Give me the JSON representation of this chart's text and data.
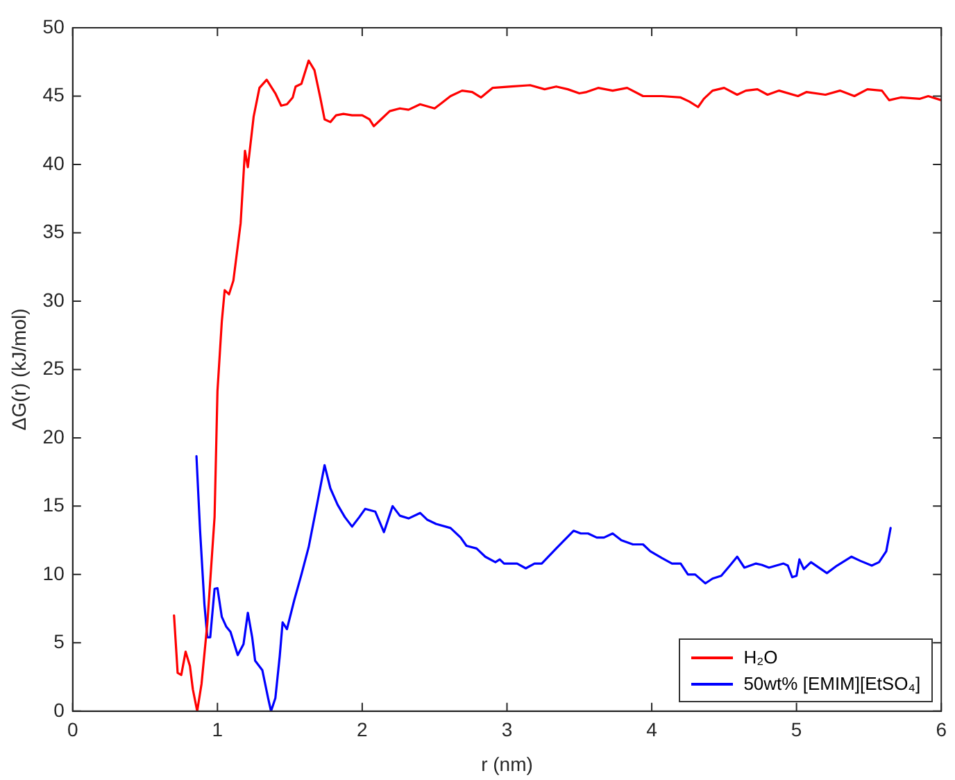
{
  "chart_data": {
    "type": "line",
    "xlabel": "r (nm)",
    "ylabel": "ΔG(r) (kJ/mol)",
    "xlim": [
      0,
      6
    ],
    "xticks": [
      0,
      1,
      2,
      3,
      4,
      5,
      6
    ],
    "ylim": [
      0,
      50
    ],
    "yticks": [
      0,
      5,
      10,
      15,
      20,
      25,
      30,
      35,
      40,
      45,
      50
    ],
    "grid": false,
    "legend": "bottom right",
    "marker": "none",
    "line_style": "solid",
    "series": [
      {
        "name": "H₂O",
        "color": "#ff0000",
        "x": [
          0.7,
          0.725,
          0.75,
          0.78,
          0.81,
          0.83,
          0.86,
          0.89,
          0.93,
          0.98,
          1.0,
          1.03,
          1.05,
          1.08,
          1.11,
          1.14,
          1.16,
          1.19,
          1.21,
          1.25,
          1.29,
          1.34,
          1.4,
          1.44,
          1.48,
          1.52,
          1.54,
          1.58,
          1.63,
          1.67,
          1.71,
          1.74,
          1.78,
          1.82,
          1.87,
          1.93,
          2.0,
          2.05,
          2.08,
          2.13,
          2.19,
          2.26,
          2.32,
          2.4,
          2.5,
          2.55,
          2.61,
          2.69,
          2.76,
          2.82,
          2.9,
          3.03,
          3.16,
          3.26,
          3.34,
          3.42,
          3.5,
          3.55,
          3.63,
          3.73,
          3.83,
          3.94,
          4.07,
          4.2,
          4.26,
          4.32,
          4.36,
          4.42,
          4.5,
          4.59,
          4.65,
          4.73,
          4.8,
          4.88,
          5.01,
          5.07,
          5.2,
          5.3,
          5.4,
          5.49,
          5.59,
          5.64,
          5.72,
          5.85,
          5.91,
          6.0
        ],
        "values": [
          7.0,
          2.8,
          2.65,
          4.35,
          3.3,
          1.6,
          0,
          2.0,
          6.4,
          14.2,
          23.4,
          28.5,
          30.8,
          30.5,
          31.5,
          34.0,
          35.7,
          41.0,
          39.8,
          43.5,
          45.6,
          46.2,
          45.2,
          44.3,
          44.4,
          44.9,
          45.7,
          45.9,
          47.6,
          46.9,
          44.9,
          43.3,
          43.1,
          43.6,
          43.7,
          43.6,
          43.6,
          43.3,
          42.8,
          43.3,
          43.9,
          44.1,
          44.0,
          44.4,
          44.1,
          44.5,
          45.0,
          45.4,
          45.3,
          44.9,
          45.6,
          45.7,
          45.8,
          45.5,
          45.7,
          45.5,
          45.2,
          45.3,
          45.6,
          45.4,
          45.6,
          45.0,
          45.0,
          44.9,
          44.6,
          44.2,
          44.8,
          45.4,
          45.6,
          45.1,
          45.4,
          45.5,
          45.1,
          45.4,
          45.0,
          45.3,
          45.1,
          45.4,
          45.0,
          45.5,
          45.4,
          44.7,
          44.9,
          44.8,
          45.0,
          44.7
        ]
      },
      {
        "name": "50wt% [EMIM][EtSO₄]",
        "color": "#0000ff",
        "x": [
          0.855,
          0.88,
          0.91,
          0.93,
          0.95,
          0.98,
          1.0,
          1.03,
          1.06,
          1.09,
          1.14,
          1.18,
          1.21,
          1.24,
          1.26,
          1.31,
          1.35,
          1.37,
          1.4,
          1.43,
          1.45,
          1.48,
          1.53,
          1.58,
          1.63,
          1.69,
          1.74,
          1.78,
          1.83,
          1.88,
          1.93,
          1.98,
          2.02,
          2.09,
          2.15,
          2.21,
          2.26,
          2.32,
          2.4,
          2.45,
          2.51,
          2.61,
          2.68,
          2.72,
          2.79,
          2.85,
          2.92,
          2.95,
          2.98,
          3.07,
          3.13,
          3.19,
          3.24,
          3.34,
          3.46,
          3.51,
          3.56,
          3.62,
          3.67,
          3.73,
          3.79,
          3.87,
          3.94,
          3.99,
          4.07,
          4.14,
          4.2,
          4.25,
          4.3,
          4.37,
          4.42,
          4.48,
          4.54,
          4.59,
          4.64,
          4.72,
          4.76,
          4.81,
          4.91,
          4.94,
          4.97,
          5.0,
          5.02,
          5.05,
          5.1,
          5.21,
          5.28,
          5.38,
          5.44,
          5.52,
          5.57,
          5.62,
          5.65
        ],
        "values": [
          18.65,
          13.2,
          7.8,
          5.4,
          5.4,
          8.95,
          9.0,
          6.9,
          6.2,
          5.8,
          4.1,
          4.9,
          7.2,
          5.4,
          3.7,
          3.0,
          0.95,
          0,
          0.95,
          4.0,
          6.5,
          6.0,
          8.1,
          10.0,
          12.0,
          15.25,
          18.0,
          16.3,
          15.1,
          14.2,
          13.5,
          14.2,
          14.8,
          14.6,
          13.1,
          15.0,
          14.3,
          14.1,
          14.5,
          14.0,
          13.7,
          13.4,
          12.7,
          12.1,
          11.9,
          11.3,
          10.9,
          11.1,
          10.8,
          10.8,
          10.45,
          10.8,
          10.8,
          11.9,
          13.2,
          13.0,
          13.0,
          12.7,
          12.7,
          13.0,
          12.5,
          12.2,
          12.2,
          11.7,
          11.2,
          10.8,
          10.8,
          10.0,
          10.0,
          9.35,
          9.7,
          9.9,
          10.65,
          11.3,
          10.5,
          10.8,
          10.7,
          10.5,
          10.8,
          10.65,
          9.8,
          9.9,
          11.1,
          10.4,
          10.9,
          10.1,
          10.65,
          11.3,
          11.0,
          10.65,
          10.9,
          11.7,
          13.4
        ]
      }
    ]
  }
}
